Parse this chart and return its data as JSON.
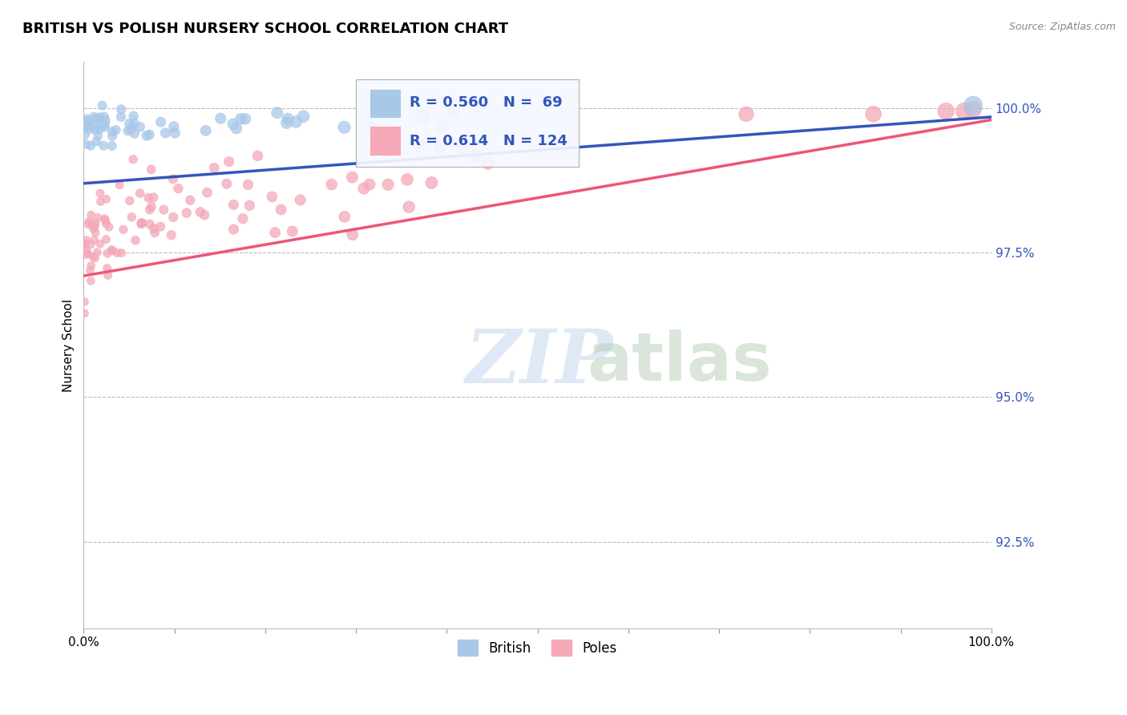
{
  "title": "BRITISH VS POLISH NURSERY SCHOOL CORRELATION CHART",
  "source": "Source: ZipAtlas.com",
  "ylabel": "Nursery School",
  "ytick_labels": [
    "92.5%",
    "95.0%",
    "97.5%",
    "100.0%"
  ],
  "ytick_values": [
    0.925,
    0.95,
    0.975,
    1.0
  ],
  "xlim": [
    0.0,
    1.0
  ],
  "ylim": [
    0.91,
    1.008
  ],
  "british_color": "#A8C8E8",
  "poles_color": "#F4A8B8",
  "british_line_color": "#3355BB",
  "poles_line_color": "#EE5577",
  "legend_text_color": "#3355BB",
  "R_british": 0.56,
  "N_british": 69,
  "R_poles": 0.614,
  "N_poles": 124,
  "watermark_zip": "ZIP",
  "watermark_atlas": "atlas",
  "background_color": "#ffffff",
  "grid_color": "#bbbbbb",
  "brit_line_start": 0.987,
  "brit_line_end": 0.9985,
  "poles_line_start": 0.971,
  "poles_line_end": 0.998
}
